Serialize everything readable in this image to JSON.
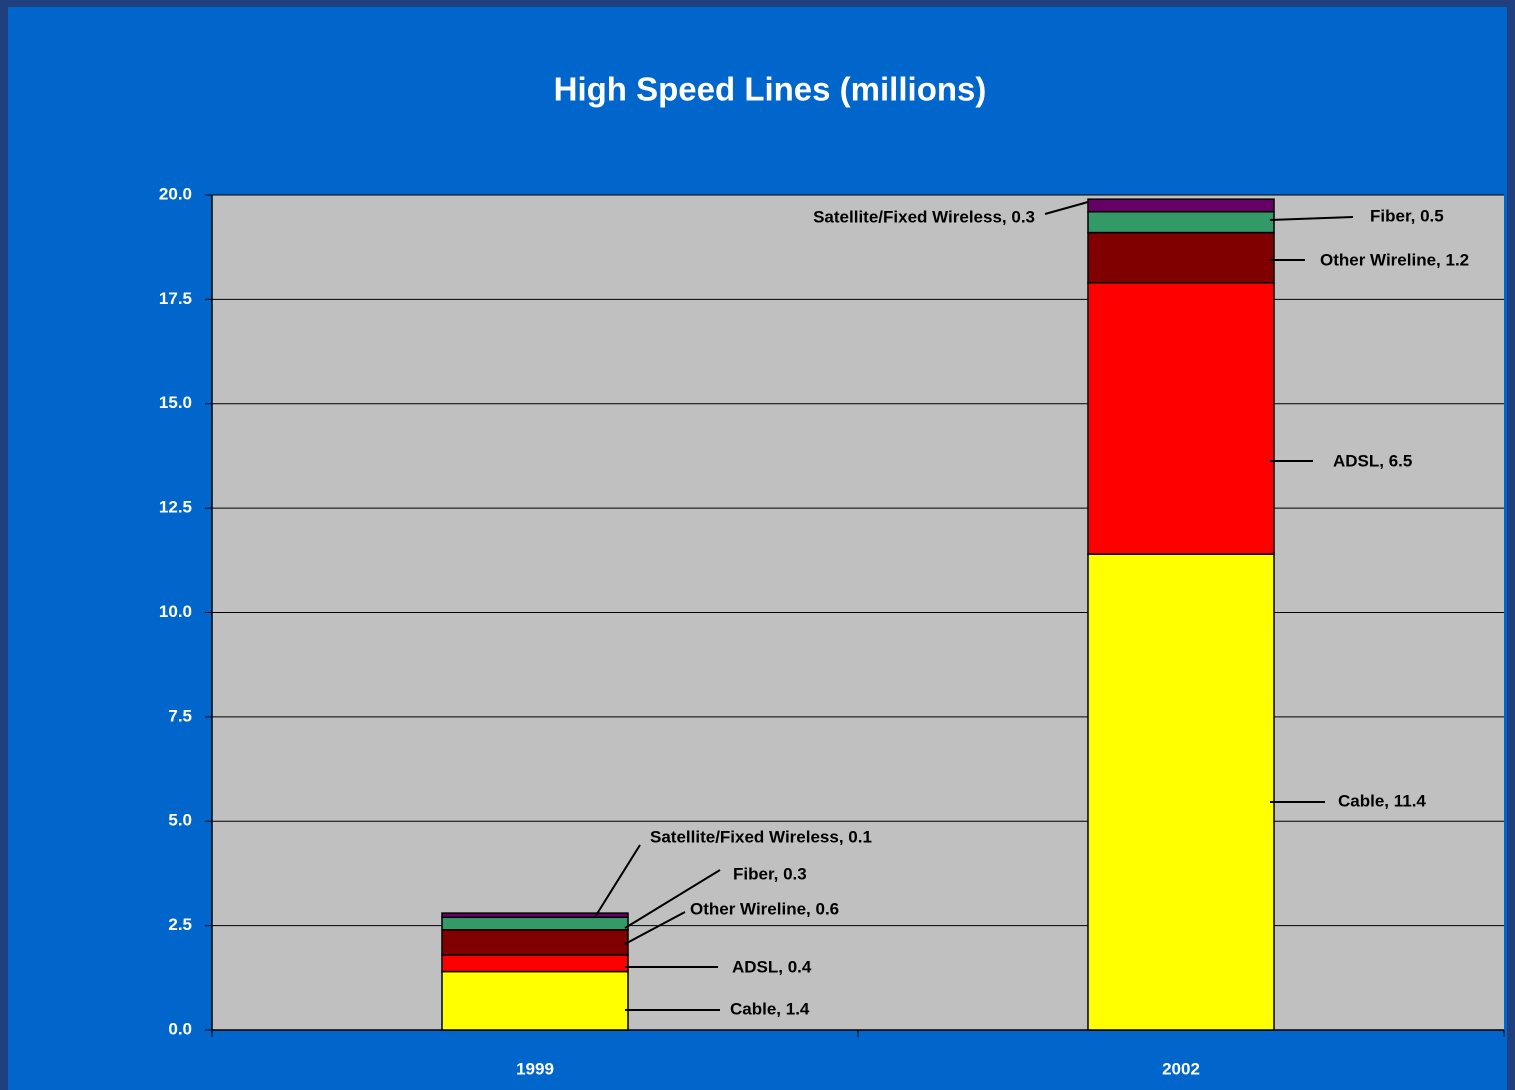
{
  "chart_data": {
    "type": "stacked_bar",
    "title": "High Speed Lines (millions)",
    "categories": [
      "1999",
      "2002"
    ],
    "series": [
      {
        "name": "Cable",
        "color": "#ffff00",
        "values": [
          1.4,
          11.4
        ],
        "value_labels": [
          "Cable, 1.4",
          "Cable, 11.4"
        ]
      },
      {
        "name": "ADSL",
        "color": "#ff0000",
        "values": [
          0.4,
          6.5
        ],
        "value_labels": [
          "ADSL, 0.4",
          "ADSL, 6.5"
        ]
      },
      {
        "name": "Other Wireline",
        "color": "#800000",
        "values": [
          0.6,
          1.2
        ],
        "value_labels": [
          "Other Wireline, 0.6",
          "Other Wireline, 1.2"
        ]
      },
      {
        "name": "Fiber",
        "color": "#339966",
        "values": [
          0.3,
          0.5
        ],
        "value_labels": [
          "Fiber, 0.3",
          "Fiber, 0.5"
        ]
      },
      {
        "name": "Satellite/Fixed Wireless",
        "color": "#660066",
        "values": [
          0.1,
          0.3
        ],
        "value_labels": [
          "Satellite/Fixed Wireless, 0.1",
          "Satellite/Fixed Wireless, 0.3"
        ]
      }
    ],
    "ylim": [
      0,
      20
    ],
    "yticks": [
      {
        "value": 0,
        "label": "0.0"
      },
      2.5,
      {
        "value": 5,
        "label": "5.0"
      },
      7.5,
      {
        "value": 10,
        "label": "10.0"
      },
      12.5,
      {
        "value": 15,
        "label": "15.0"
      },
      17.5,
      {
        "value": 20,
        "label": "20.0"
      }
    ],
    "grid": true,
    "plot_background": "#c0c0c0",
    "background": "#0066cc"
  }
}
